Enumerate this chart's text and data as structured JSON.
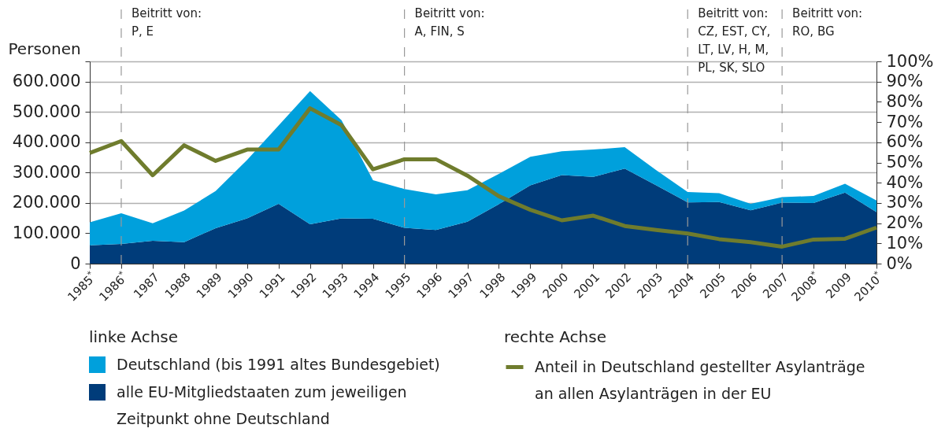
{
  "chart_data": {
    "type": "area",
    "ylabel": "Personen",
    "stacked": true,
    "categories": [
      "1985$^{*}$",
      "1986$^{*}$",
      "1987",
      "1988",
      "1989",
      "1990",
      "1991",
      "1992",
      "1993",
      "1994",
      "1995",
      "1996",
      "1997",
      "1998",
      "1999",
      "2000",
      "2001",
      "2002",
      "2003",
      "2004",
      "2005",
      "2006",
      "2007",
      "2008$^{*}$",
      "2009",
      "2010$^{*}$"
    ],
    "series": [
      {
        "name": "alle EU-Mitgliedstaaten zum jeweiligen Zeitpunkt ohne Deutschland",
        "color": "#003c7a",
        "values": [
          60000,
          65000,
          75000,
          71000,
          117000,
          149000,
          197000,
          130000,
          149000,
          148000,
          118000,
          111000,
          138000,
          196000,
          258000,
          292000,
          286000,
          313000,
          258000,
          202000,
          203000,
          176000,
          201000,
          200000,
          234000,
          170000
        ]
      },
      {
        "name": "Deutschland (bis 1991 altes Bundesgebiet)",
        "color": "#00a0dc",
        "values": [
          76000,
          101000,
          58000,
          104000,
          122000,
          193000,
          258000,
          439000,
          324000,
          127000,
          128000,
          117000,
          104000,
          100000,
          94000,
          78000,
          90000,
          71000,
          50000,
          34000,
          29000,
          21000,
          18000,
          23000,
          29000,
          38000
        ]
      },
      {
        "name": "Anteil in Deutschland gestellter Asylanträge an allen Asylanträgen in der EU",
        "type": "line",
        "axis": "y2",
        "color": "#6f7c2d",
        "values": [
          54.7,
          60.6,
          43.7,
          58.5,
          50.8,
          56.4,
          56.4,
          76.8,
          68.5,
          46.6,
          51.6,
          51.6,
          43.5,
          33.3,
          26.6,
          21.4,
          23.7,
          18.6,
          16.6,
          14.9,
          12.1,
          10.6,
          8.4,
          11.9,
          12.3,
          17.8
        ]
      }
    ],
    "ylim": [
      0,
      666667
    ],
    "yticks": [
      0,
      {
        "value": 100000,
        "label": "100.000"
      },
      {
        "value": 200000,
        "label": "200.000"
      },
      {
        "value": 300000,
        "label": "300.000"
      },
      {
        "value": 400000,
        "label": "400.000"
      },
      {
        "value": 500000,
        "label": "500.000"
      },
      {
        "value": 600000,
        "label": "600.000"
      },
      {
        "value": 666667,
        "label": null
      }
    ],
    "y2lim": [
      0,
      100
    ],
    "y2ticks": [
      {
        "value": 0,
        "label": "0%"
      },
      {
        "value": 10,
        "label": "10%"
      },
      {
        "value": 20,
        "label": "20%"
      },
      {
        "value": 30,
        "label": "30%"
      },
      {
        "value": 40,
        "label": "40%"
      },
      {
        "value": 50,
        "label": "50%"
      },
      {
        "value": 60,
        "label": "60%"
      },
      {
        "value": 70,
        "label": "70%"
      },
      {
        "value": 80,
        "label": "80%"
      },
      {
        "value": 90,
        "label": "90%"
      },
      {
        "value": 100,
        "label": "100%"
      }
    ],
    "ref_lines": [
      {
        "axis": "x",
        "value": "1986$^{*}$",
        "label": "Beitritt von:\nP, E",
        "color": "#999999",
        "line_style": "dashed"
      },
      {
        "axis": "x",
        "value": "1995",
        "label": "Beitritt von:\nA, FIN, S",
        "color": "#999999",
        "line_style": "dashed"
      },
      {
        "axis": "x",
        "value": "2004",
        "label": "Beitritt von:\nCZ, EST, CY,\nLT, LV, H, M,\nPL, SK, SLO",
        "color": "#999999",
        "line_style": "dashed"
      },
      {
        "axis": "x",
        "value": "2007",
        "label": "Beitritt von:\nRO, BG",
        "color": "#999999",
        "line_style": "dashed"
      }
    ],
    "legend": "bottom",
    "legend_title": [
      "linke Achse",
      "rechte Achse"
    ],
    "grid": "y",
    "line_style": "solid"
  }
}
